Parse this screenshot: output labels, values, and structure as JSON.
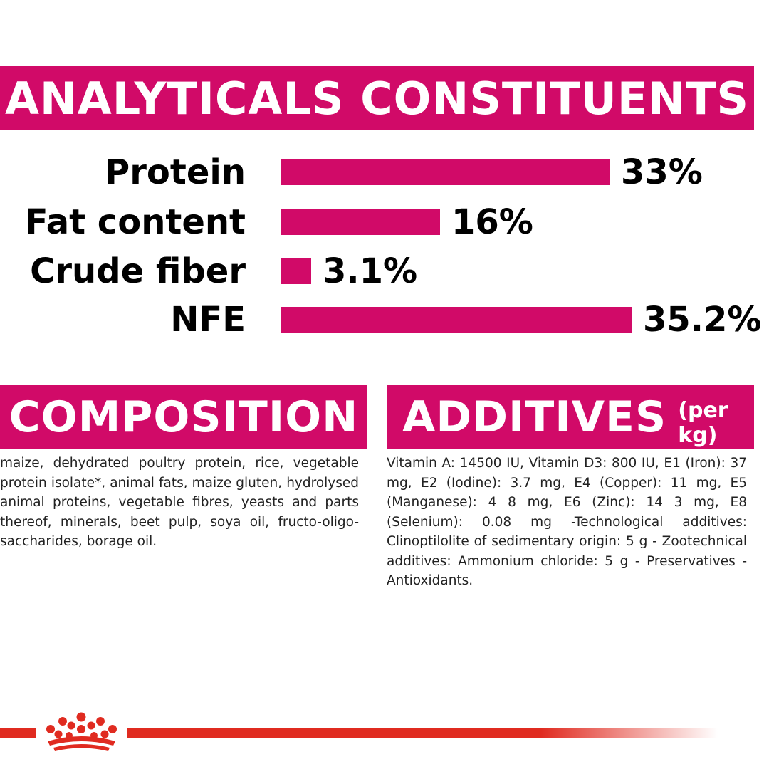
{
  "analyticals": {
    "title": "ANALYTICALS CONSTITUENTS",
    "rows": [
      {
        "label": "Protein",
        "value_text": "33%",
        "value": 33
      },
      {
        "label": "Fat content",
        "value_text": "16%",
        "value": 16
      },
      {
        "label": "Crude fiber",
        "value_text": "3.1%",
        "value": 3.1
      },
      {
        "label": "NFE",
        "value_text": "35.2%",
        "value": 35.2
      }
    ]
  },
  "composition": {
    "title": "COMPOSITION",
    "text": "maize, dehydrated poultry protein, rice, vegetable protein isolate*, animal fats, maize gluten, hydrolysed animal proteins, vegetable fibres, yeasts and parts thereof, minerals, beet pulp, soya oil, fructo-oligo-saccharides, borage oil."
  },
  "additives": {
    "title": "ADDITIVES",
    "subtitle": "(per kg)",
    "text": "Vitamin A: 14500 IU, Vitamin D3: 800 IU, E1 (Iron): 37 mg, E2 (Iodine): 3.7 mg, E4 (Copper): 11 mg, E5 (Manganese): 4 8 mg, E6 (Zinc): 14 3 mg, E8 (Selenium): 0.08 mg -Technological additives: Clinoptilolite of sedimentary origin: 5 g - Zootechnical additives: Ammonium chloride: 5 g - Preservatives - Antioxidants."
  },
  "logo": {
    "icon": "royal-canin-crown-icon"
  },
  "colors": {
    "accent": "#d10a68",
    "footer_line": "#e02b20"
  }
}
